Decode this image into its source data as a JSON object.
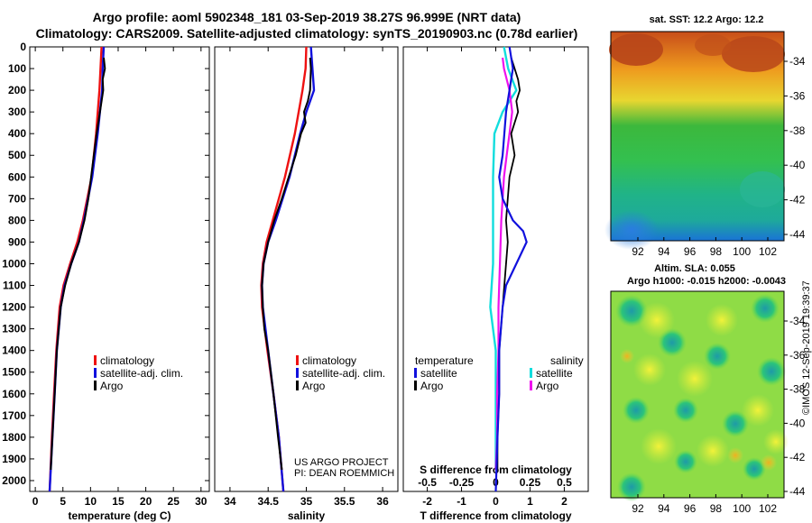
{
  "title": {
    "line1": "Argo profile: aoml 5902348_181 03-Sep-2019 38.27S 96.999E (NRT data)",
    "line2": "Climatology: CARS2009. Satellite-adjusted climatology: synTS_20190903.nc (0.78d earlier)"
  },
  "colors": {
    "climatology": "#ee1111",
    "satellite": "#1111dd",
    "argo": "#000000",
    "argo_s": "#ee11ee",
    "sat_s": "#11dddd"
  },
  "credit": {
    "line1": "US ARGO PROJECT",
    "line2": "PI: DEAN ROEMMICH"
  },
  "stamp": "©IMOS 12-Sep-2019 19:39:37",
  "chart_data": [
    {
      "id": "temperature",
      "type": "line",
      "xlabel": "temperature (deg C)",
      "ylabel": "",
      "xlim": [
        -1,
        31.5
      ],
      "ylim": [
        2050,
        0
      ],
      "xticks": [
        0,
        5,
        10,
        15,
        20,
        25,
        30
      ],
      "yticks": [
        0,
        100,
        200,
        300,
        400,
        500,
        600,
        700,
        800,
        900,
        1000,
        1100,
        1200,
        1300,
        1400,
        1500,
        1600,
        1700,
        1800,
        1900,
        2000
      ],
      "legend": [
        "climatology",
        "satellite-adj. clim.",
        "Argo"
      ],
      "series": [
        {
          "name": "climatology",
          "depth": [
            0,
            100,
            200,
            400,
            600,
            800,
            900,
            1000,
            1100,
            1200,
            1400,
            1600,
            1800,
            2050
          ],
          "values": [
            12,
            11.8,
            11.6,
            11,
            10.2,
            8.6,
            7.6,
            6.3,
            5.1,
            4.4,
            3.8,
            3.4,
            3.0,
            2.6
          ]
        },
        {
          "name": "satellite-adj. clim.",
          "depth": [
            0,
            100,
            200,
            400,
            600,
            800,
            900,
            1000,
            1100,
            1200,
            1400,
            1600,
            1800,
            2050
          ],
          "values": [
            12.4,
            12.2,
            12.1,
            11.3,
            10.3,
            8.8,
            7.9,
            6.5,
            5.3,
            4.6,
            3.9,
            3.5,
            3.1,
            2.6
          ]
        },
        {
          "name": "Argo",
          "depth": [
            50,
            100,
            150,
            200,
            300,
            400,
            500,
            600,
            700,
            800,
            900,
            1000,
            1100,
            1200,
            1400,
            1600,
            1800,
            1950
          ],
          "values": [
            12.4,
            12.6,
            12.2,
            12.3,
            11.7,
            11.1,
            10.6,
            10.1,
            9.6,
            8.9,
            7.9,
            6.5,
            5.4,
            4.6,
            3.9,
            3.5,
            3.1,
            2.8
          ]
        }
      ]
    },
    {
      "id": "salinity",
      "type": "line",
      "xlabel": "salinity",
      "xlim": [
        33.8,
        36.2
      ],
      "ylim": [
        2050,
        0
      ],
      "xticks": [
        34,
        34.5,
        35,
        35.5,
        36
      ],
      "xticklabels": [
        "34",
        "34.5",
        "35",
        "35.5",
        "36"
      ],
      "legend": [
        "climatology",
        "satellite-adj. clim.",
        "Argo"
      ],
      "series": [
        {
          "name": "climatology",
          "depth": [
            0,
            100,
            200,
            400,
            600,
            800,
            900,
            1000,
            1100,
            1200,
            1400,
            1600,
            1800,
            2050
          ],
          "values": [
            35.0,
            34.99,
            34.95,
            34.85,
            34.72,
            34.56,
            34.48,
            34.43,
            34.41,
            34.42,
            34.49,
            34.57,
            34.64,
            34.7
          ]
        },
        {
          "name": "satellite-adj. clim.",
          "depth": [
            0,
            100,
            200,
            300,
            400,
            600,
            800,
            900,
            1000,
            1100,
            1200,
            1400,
            1600,
            1800,
            2050
          ],
          "values": [
            35.06,
            35.08,
            35.1,
            35.0,
            34.92,
            34.78,
            34.6,
            34.5,
            34.44,
            34.42,
            34.43,
            34.5,
            34.57,
            34.64,
            34.7
          ]
        },
        {
          "name": "Argo",
          "depth": [
            50,
            100,
            200,
            250,
            300,
            350,
            400,
            500,
            600,
            700,
            800,
            900,
            1000,
            1100,
            1200,
            1300,
            1400,
            1600,
            1800,
            1950
          ],
          "values": [
            35.05,
            35.06,
            35.05,
            35.02,
            34.97,
            34.99,
            34.93,
            34.86,
            34.77,
            34.68,
            34.58,
            34.5,
            34.44,
            34.42,
            34.43,
            34.45,
            34.5,
            34.57,
            34.63,
            34.68
          ]
        }
      ]
    },
    {
      "id": "difference",
      "type": "line",
      "xlabel": "T difference from climatology",
      "xlabel2": "S difference from climatology",
      "xlim": [
        -2.7,
        2.7
      ],
      "ylim": [
        2050,
        0
      ],
      "xticks": [
        -2,
        -1,
        0,
        1,
        2
      ],
      "xticks_s": [
        -0.5,
        -0.25,
        0,
        0.25,
        0.5
      ],
      "xticklabels_s": [
        "-0.5",
        "-0.25",
        "0",
        "0.25",
        "0.5"
      ],
      "legend_left_title": "temperature",
      "legend_right_title": "salinity",
      "legend_left": [
        "satellite",
        "Argo"
      ],
      "legend_right": [
        "satellite",
        "Argo"
      ],
      "series": [
        {
          "name": "T satellite",
          "depth": [
            0,
            100,
            200,
            300,
            400,
            500,
            600,
            700,
            800,
            850,
            900,
            1000,
            1100,
            1200,
            1400,
            1600,
            1800,
            2050
          ],
          "values": [
            0.4,
            0.5,
            0.4,
            0.3,
            0.25,
            0.2,
            0.1,
            0.2,
            0.5,
            0.8,
            0.9,
            0.6,
            0.3,
            0.2,
            0.1,
            0.1,
            0.05,
            0
          ]
        },
        {
          "name": "T Argo",
          "depth": [
            50,
            100,
            150,
            200,
            250,
            300,
            400,
            500,
            600,
            700,
            800,
            900,
            1000,
            1100,
            1200,
            1400,
            1600,
            1800,
            1950
          ],
          "values": [
            0.45,
            0.55,
            0.65,
            0.7,
            0.6,
            0.65,
            0.45,
            0.55,
            0.4,
            0.35,
            0.3,
            0.35,
            0.3,
            0.25,
            0.2,
            0.1,
            0.1,
            0.05,
            0.05
          ]
        },
        {
          "name": "S satellite",
          "depth": [
            0,
            100,
            200,
            300,
            400,
            600,
            800,
            1000,
            1200,
            1400,
            1600,
            1800,
            1950
          ],
          "values": [
            0.06,
            0.09,
            0.15,
            0.05,
            -0.01,
            -0.02,
            -0.02,
            -0.02,
            -0.04,
            0.0,
            0.0,
            0.0,
            0.0
          ]
        },
        {
          "name": "S Argo",
          "depth": [
            50,
            100,
            200,
            300,
            400,
            500,
            600,
            800,
            1000,
            1200,
            1400,
            1600,
            1800,
            1950
          ],
          "values": [
            0.05,
            0.06,
            0.1,
            0.12,
            0.1,
            0.08,
            0.06,
            0.04,
            0.03,
            0.02,
            0.02,
            0.01,
            0.01,
            0.0
          ]
        }
      ]
    }
  ],
  "maps": {
    "sst": {
      "title": "sat. SST: 12.2 Argo: 12.2",
      "xticks": [
        "92",
        "94",
        "96",
        "98",
        "100",
        "102"
      ],
      "yticks": [
        "-34",
        "-36",
        "-38",
        "-40",
        "-42",
        "-44"
      ]
    },
    "sla": {
      "title1": "Altim. SLA: 0.055",
      "title2": "Argo h1000: -0.015 h2000: -0.0043",
      "xticks": [
        "92",
        "94",
        "96",
        "98",
        "100",
        "102"
      ],
      "yticks": [
        "-34",
        "-36",
        "-38",
        "-40",
        "-42",
        "-44"
      ]
    }
  }
}
